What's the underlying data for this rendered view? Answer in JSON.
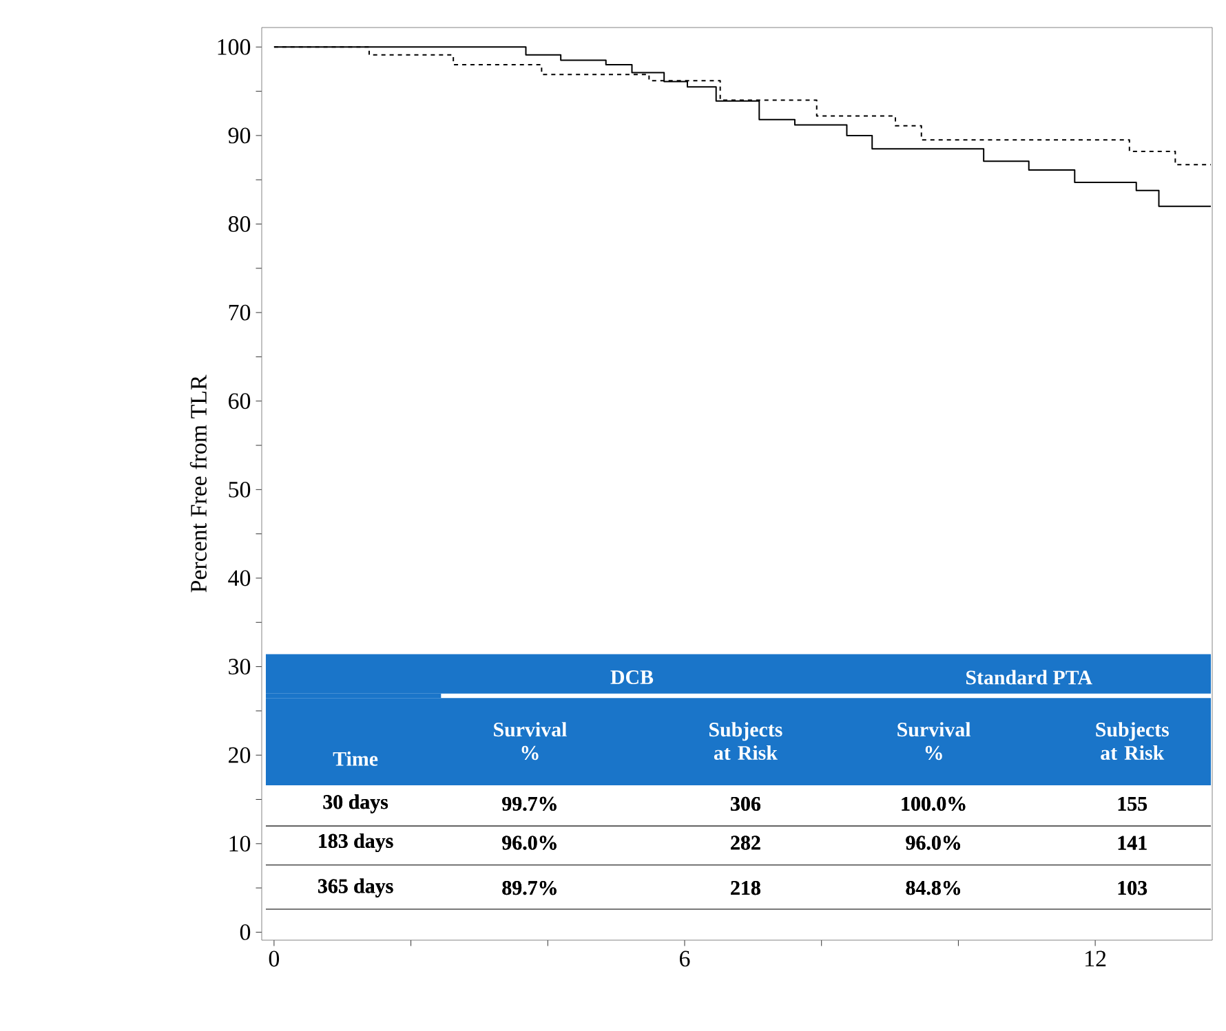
{
  "chart_data": {
    "type": "step",
    "ylabel": "Percent Free from TLR",
    "xlim": [
      -0.18,
      13.71
    ],
    "ylim": [
      -0.9,
      102.2
    ],
    "xticks": [
      0,
      {
        "value": 2,
        "label": null
      },
      {
        "value": 4,
        "label": null
      },
      6,
      {
        "value": 8,
        "label": null
      },
      {
        "value": 10,
        "label": null
      },
      12
    ],
    "yticks": [
      0,
      {
        "value": 5,
        "label": null
      },
      10,
      {
        "value": 15,
        "label": null
      },
      20,
      {
        "value": 25,
        "label": null
      },
      30,
      {
        "value": 35,
        "label": null
      },
      40,
      {
        "value": 45,
        "label": null
      },
      50,
      {
        "value": 55,
        "label": null
      },
      60,
      {
        "value": 65,
        "label": null
      },
      70,
      {
        "value": 75,
        "label": null
      },
      80,
      {
        "value": 85,
        "label": null
      },
      90,
      {
        "value": 95,
        "label": null
      },
      100
    ],
    "marker": "none",
    "series": [
      {
        "color": "#000000",
        "line_style": "solid",
        "x": [
          0,
          3.68,
          4.19,
          4.85,
          5.23,
          5.7,
          6.04,
          6.46,
          7.09,
          7.61,
          8.37,
          8.74,
          10.37,
          11.03,
          11.7,
          12.6,
          12.93,
          13.69
        ],
        "values": [
          100,
          99.1,
          98.5,
          98.0,
          97.1,
          96.1,
          95.5,
          93.9,
          91.8,
          91.2,
          90.0,
          88.5,
          87.1,
          86.1,
          84.7,
          83.8,
          82.0,
          82.0
        ]
      },
      {
        "color": "#000000",
        "line_style": "dashed",
        "x": [
          0,
          1.39,
          2.62,
          3.91,
          5.48,
          6.52,
          7.93,
          9.08,
          9.46,
          12.5,
          13.17,
          13.69
        ],
        "values": [
          100,
          99.1,
          98.0,
          96.9,
          96.2,
          94.0,
          92.2,
          91.1,
          89.5,
          88.2,
          86.7,
          86.7
        ]
      }
    ],
    "annotations": [
      "DCB",
      "Standard PTA",
      "Time",
      "Survival %",
      "Subjects at Risk",
      "Survival %",
      "Subjects at Risk",
      "30 days",
      "99.7%",
      "306",
      "100.0%",
      "155",
      "183 days",
      "96.0%",
      "282",
      "96.0%",
      "141",
      "365 days",
      "89.7%",
      "218",
      "84.8%",
      "103"
    ]
  }
}
